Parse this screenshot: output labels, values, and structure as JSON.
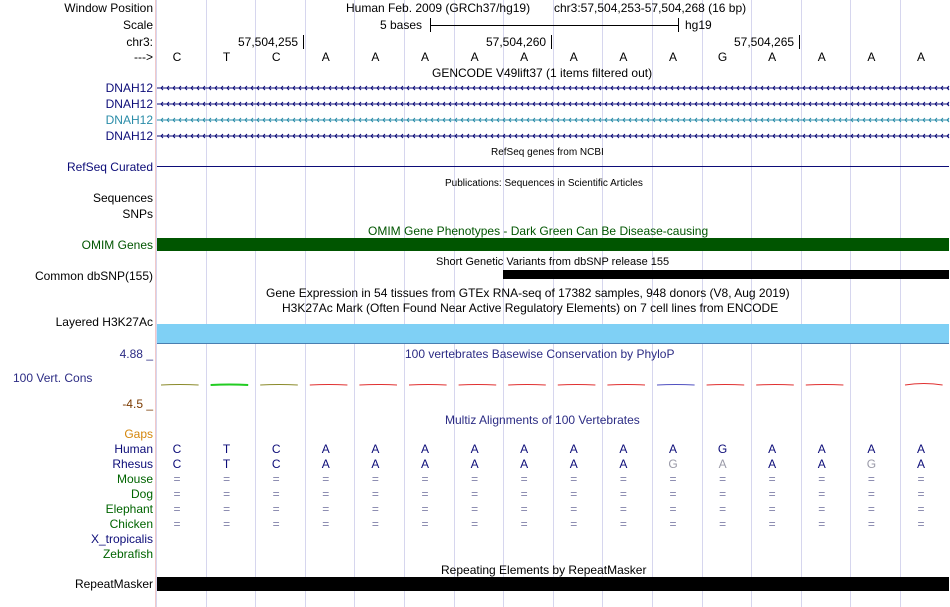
{
  "header": {
    "window_position_label": "Window Position",
    "assembly_text": "Human Feb. 2009 (GRCh37/hg19)",
    "position_text": "chr3:57,504,253-57,504,268 (16 bp)",
    "scale_label": "Scale",
    "scale_text": "5 bases",
    "scale_db": "hg19",
    "chr_label": "chr3:",
    "arrow_label": "--->",
    "coord_ticks": [
      "57,504,255",
      "57,504,260",
      "57,504,265"
    ]
  },
  "reference_bases": [
    "C",
    "T",
    "C",
    "A",
    "A",
    "A",
    "A",
    "A",
    "A",
    "A",
    "A",
    "G",
    "A",
    "A",
    "A",
    "A"
  ],
  "gencode": {
    "title": "GENCODE V49lift37 (1 items filtered out)",
    "genes": [
      "DNAH12",
      "DNAH12",
      "DNAH12",
      "DNAH12"
    ],
    "highlight_color": "#2a8ca8",
    "gene_color": "#0c0c78"
  },
  "refseq": {
    "label": "RefSeq Curated",
    "title": "RefSeq genes from NCBI"
  },
  "publications": {
    "label_sequences": "Sequences",
    "label_snps": "SNPs",
    "title": "Publications: Sequences in Scientific Articles"
  },
  "omim": {
    "label": "OMIM Genes",
    "title": "OMIM Gene Phenotypes - Dark Green Can Be Disease-causing",
    "color": "#005500"
  },
  "dbsnp": {
    "label": "Common dbSNP(155)",
    "title": "Short Genetic Variants from dbSNP release 155"
  },
  "gtex": {
    "title": "Gene Expression in 54 tissues from GTEx RNA-seq of 17382 samples, 948 donors (V8, Aug 2019)"
  },
  "h3k27ac": {
    "label": "Layered H3K27Ac",
    "title": "H3K27Ac Mark (Often Found Near Active Regulatory Elements) on 7 cell lines from ENCODE",
    "color": "#7fd0f5"
  },
  "phylop": {
    "label": "100 Vert. Cons",
    "max": "4.88 _",
    "min": "-4.5 _",
    "title": "100 vertebrates Basewise Conservation by PhyloP",
    "label_color": "#2c2c84"
  },
  "multiz": {
    "title": "Multiz Alignments of 100 Vertebrates",
    "gaps_label": "Gaps",
    "species": [
      {
        "name": "Human",
        "bases": [
          "C",
          "T",
          "C",
          "A",
          "A",
          "A",
          "A",
          "A",
          "A",
          "A",
          "A",
          "G",
          "A",
          "A",
          "A",
          "A"
        ]
      },
      {
        "name": "Rhesus",
        "bases": [
          "C",
          "T",
          "C",
          "A",
          "A",
          "A",
          "A",
          "A",
          "A",
          "A",
          "G",
          "A",
          "A",
          "A",
          "G",
          "A"
        ]
      },
      {
        "name": "Mouse",
        "bases": [
          "=",
          "=",
          "=",
          "=",
          "=",
          "=",
          "=",
          "=",
          "=",
          "=",
          "=",
          "=",
          "=",
          "=",
          "=",
          "="
        ]
      },
      {
        "name": "Dog",
        "bases": [
          "=",
          "=",
          "=",
          "=",
          "=",
          "=",
          "=",
          "=",
          "=",
          "=",
          "=",
          "=",
          "=",
          "=",
          "=",
          "="
        ]
      },
      {
        "name": "Elephant",
        "bases": [
          "=",
          "=",
          "=",
          "=",
          "=",
          "=",
          "=",
          "=",
          "=",
          "=",
          "=",
          "=",
          "=",
          "=",
          "=",
          "="
        ]
      },
      {
        "name": "Chicken",
        "bases": [
          "=",
          "=",
          "=",
          "=",
          "=",
          "=",
          "=",
          "=",
          "=",
          "=",
          "=",
          "=",
          "=",
          "=",
          "=",
          "="
        ]
      },
      {
        "name": "X_tropicalis",
        "bases": []
      },
      {
        "name": "Zebrafish",
        "bases": []
      }
    ]
  },
  "repeatmasker": {
    "label": "RepeatMasker",
    "title": "Repeating Elements by RepeatMasker"
  }
}
